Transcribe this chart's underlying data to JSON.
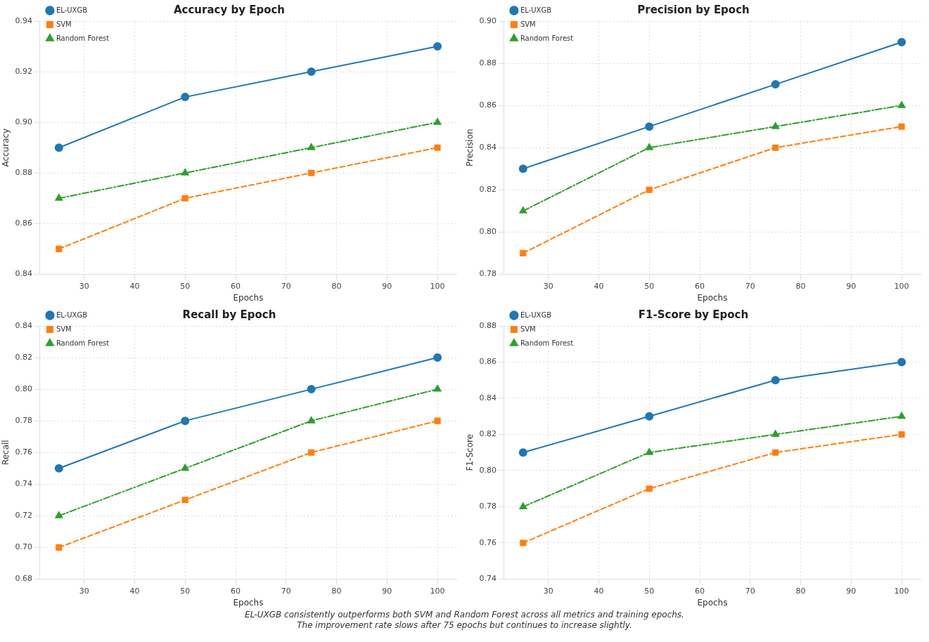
{
  "chart_data": [
    {
      "type": "line",
      "title": "Accuracy by Epoch",
      "xlabel": "Epochs",
      "ylabel": "Accuracy",
      "x": [
        25,
        50,
        75,
        100
      ],
      "xlim": [
        21.25,
        103.75
      ],
      "xticks": [
        30,
        40,
        50,
        60,
        70,
        80,
        90,
        100
      ],
      "ylim": [
        0.84,
        0.94
      ],
      "yticks": [
        0.84,
        0.86,
        0.88,
        {
          "value": 0.9,
          "label": "0.90"
        },
        0.92,
        0.94
      ],
      "grid": true,
      "legend": "top left",
      "series": [
        {
          "name": "EL-UXGB",
          "color": "#1f77b4",
          "marker": "circle",
          "line_style": "solid",
          "values": [
            0.89,
            0.91,
            0.92,
            0.93
          ]
        },
        {
          "name": "SVM",
          "color": "#ff7f0e",
          "marker": "square",
          "line_style": "dashed",
          "values": [
            0.85,
            0.87,
            0.88,
            0.89
          ]
        },
        {
          "name": "Random Forest",
          "color": "#2ca02c",
          "marker": "triangle",
          "line_style": "dashdot",
          "values": [
            0.87,
            0.88,
            0.89,
            0.9
          ]
        }
      ]
    },
    {
      "type": "line",
      "title": "Precision by Epoch",
      "xlabel": "Epochs",
      "ylabel": "Precision",
      "x": [
        25,
        50,
        75,
        100
      ],
      "xlim": [
        21.25,
        103.75
      ],
      "xticks": [
        30,
        40,
        50,
        60,
        70,
        80,
        90,
        100
      ],
      "ylim": [
        0.78,
        0.9
      ],
      "yticks": [
        0.78,
        {
          "value": 0.8,
          "label": "0.80"
        },
        0.82,
        0.84,
        0.86,
        0.88,
        {
          "value": 0.9,
          "label": "0.90"
        }
      ],
      "grid": true,
      "legend": "top left",
      "series": [
        {
          "name": "EL-UXGB",
          "color": "#1f77b4",
          "marker": "circle",
          "line_style": "solid",
          "values": [
            0.83,
            0.85,
            0.87,
            0.89
          ]
        },
        {
          "name": "SVM",
          "color": "#ff7f0e",
          "marker": "square",
          "line_style": "dashed",
          "values": [
            0.79,
            0.82,
            0.84,
            0.85
          ]
        },
        {
          "name": "Random Forest",
          "color": "#2ca02c",
          "marker": "triangle",
          "line_style": "dashdot",
          "values": [
            0.81,
            0.84,
            0.85,
            0.86
          ]
        }
      ]
    },
    {
      "type": "line",
      "title": "Recall by Epoch",
      "xlabel": "Epochs",
      "ylabel": "Recall",
      "x": [
        25,
        50,
        75,
        100
      ],
      "xlim": [
        21.25,
        103.75
      ],
      "xticks": [
        30,
        40,
        50,
        60,
        70,
        80,
        90,
        100
      ],
      "ylim": [
        0.68,
        0.84
      ],
      "yticks": [
        0.68,
        {
          "value": 0.7,
          "label": "0.70"
        },
        0.72,
        0.74,
        0.76,
        0.78,
        {
          "value": 0.8,
          "label": "0.80"
        },
        0.82,
        0.84
      ],
      "grid": true,
      "legend": "top left",
      "series": [
        {
          "name": "EL-UXGB",
          "color": "#1f77b4",
          "marker": "circle",
          "line_style": "solid",
          "values": [
            0.75,
            0.78,
            0.8,
            0.82
          ]
        },
        {
          "name": "SVM",
          "color": "#ff7f0e",
          "marker": "square",
          "line_style": "dashed",
          "values": [
            0.7,
            0.73,
            0.76,
            0.78
          ]
        },
        {
          "name": "Random Forest",
          "color": "#2ca02c",
          "marker": "triangle",
          "line_style": "dashdot",
          "values": [
            0.72,
            0.75,
            0.78,
            0.8
          ]
        }
      ]
    },
    {
      "type": "line",
      "title": "F1-Score by Epoch",
      "xlabel": "Epochs",
      "ylabel": "F1-Score",
      "x": [
        25,
        50,
        75,
        100
      ],
      "xlim": [
        21.25,
        103.75
      ],
      "xticks": [
        30,
        40,
        50,
        60,
        70,
        80,
        90,
        100
      ],
      "ylim": [
        0.74,
        0.88
      ],
      "yticks": [
        0.74,
        0.76,
        0.78,
        {
          "value": 0.8,
          "label": "0.80"
        },
        0.82,
        0.84,
        0.86,
        0.88
      ],
      "grid": true,
      "legend": "top left",
      "annotations": [
        "EL-UXGB consistently outperforms both SVM and Random Forest across all metrics and training epochs.",
        "The improvement rate slows after 75 epochs but continues to increase slightly."
      ],
      "series": [
        {
          "name": "EL-UXGB",
          "color": "#1f77b4",
          "marker": "circle",
          "line_style": "solid",
          "values": [
            0.81,
            0.83,
            0.85,
            0.86
          ]
        },
        {
          "name": "SVM",
          "color": "#ff7f0e",
          "marker": "square",
          "line_style": "dashed",
          "values": [
            0.76,
            0.79,
            0.81,
            0.82
          ]
        },
        {
          "name": "Random Forest",
          "color": "#2ca02c",
          "marker": "triangle",
          "line_style": "dashdot",
          "values": [
            0.78,
            0.81,
            0.82,
            0.83
          ]
        }
      ]
    }
  ]
}
